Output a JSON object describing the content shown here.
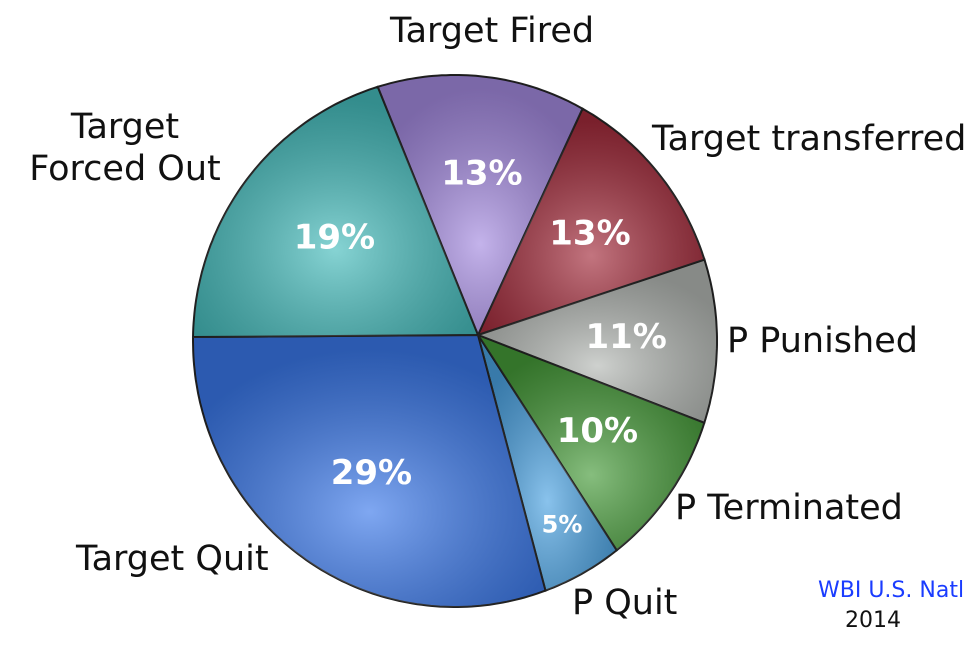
{
  "chart_data": {
    "type": "pie",
    "start_angle_deg_from_top": -22,
    "direction": "clockwise",
    "slices": [
      {
        "label": "Target Fired",
        "value": 13,
        "pct_label": "13%",
        "color": "#a48ae0"
      },
      {
        "label": "Target transferred",
        "value": 13,
        "pct_label": "13%",
        "color": "#a22a3a"
      },
      {
        "label": "P Punished",
        "value": 11,
        "pct_label": "11%",
        "color": "#b4b8b4"
      },
      {
        "label": "P Terminated",
        "value": 10,
        "pct_label": "10%",
        "color": "#459a38"
      },
      {
        "label": "P Quit",
        "value": 5,
        "pct_label": "5%",
        "color": "#4aa2e2"
      },
      {
        "label": "Target Quit",
        "value": 29,
        "pct_label": "29%",
        "color": "#3a78ea"
      },
      {
        "label": "Target Forced Out",
        "value": 19,
        "pct_label": "19%",
        "color": "#45bcbc"
      }
    ]
  },
  "source": "WBI U.S. Natl",
  "year": "2014"
}
